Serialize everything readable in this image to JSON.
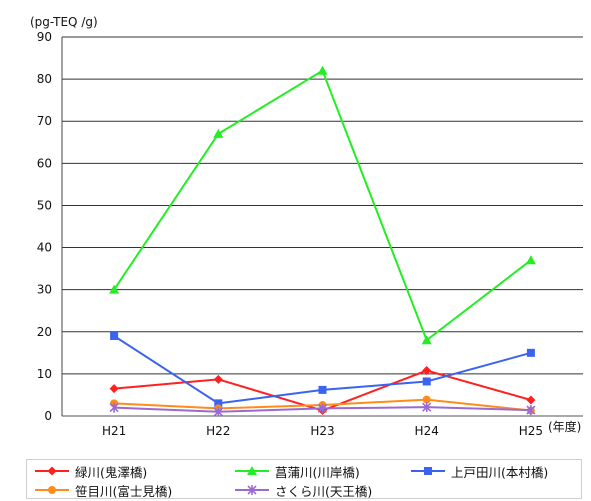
{
  "chart_data": {
    "type": "line",
    "unit_label": "(pg-TEQ /g)",
    "x_unit_label": "(年度)",
    "categories": [
      "H21",
      "H22",
      "H23",
      "H24",
      "H25"
    ],
    "ylim": [
      0,
      90
    ],
    "yticks": [
      0,
      10,
      20,
      30,
      40,
      50,
      60,
      70,
      80,
      90
    ],
    "grid": true,
    "legend_position": "bottom",
    "series": [
      {
        "name": "緑川(鬼澤橋)",
        "color": "#ff2020",
        "marker": "diamond",
        "values": [
          6.5,
          8.7,
          1.3,
          10.8,
          3.8
        ]
      },
      {
        "name": "菖蒲川(川岸橋)",
        "color": "#22ee22",
        "marker": "triangle",
        "values": [
          30,
          67,
          82,
          18,
          37
        ]
      },
      {
        "name": "上戸田川(本村橋)",
        "color": "#3a64f0",
        "marker": "square",
        "values": [
          19,
          3,
          6.2,
          8.2,
          15
        ]
      },
      {
        "name": "笹目川(富士見橋)",
        "color": "#ff8c1a",
        "marker": "circle",
        "values": [
          3,
          1.8,
          2.6,
          3.9,
          1.3
        ]
      },
      {
        "name": "さくら川(天王橋)",
        "color": "#9a6ad0",
        "marker": "cross",
        "values": [
          2,
          1,
          1.8,
          2.1,
          1.4
        ]
      }
    ]
  }
}
